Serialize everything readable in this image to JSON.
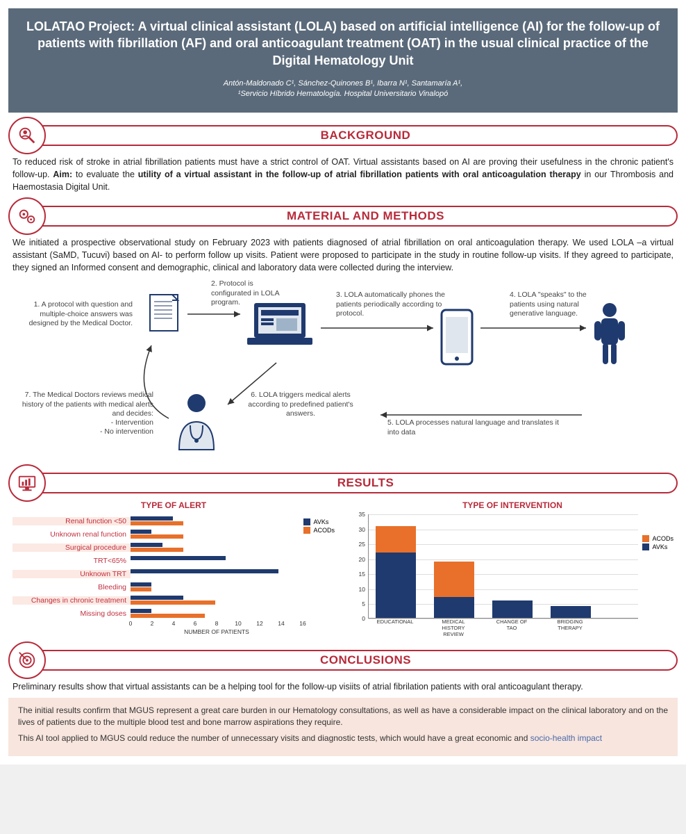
{
  "colors": {
    "header_bg": "#5a6a7a",
    "accent": "#b82a3a",
    "avk": "#1f3a6e",
    "acod": "#e8702a",
    "footer_bg": "#f7e5de",
    "label_band": "#fce9e3"
  },
  "header": {
    "title": "LOLATAO Project: A virtual clinical assistant (LOLA) based on artificial intelligence (AI) for the follow-up of patients with fibrillation (AF) and oral anticoagulant treatment (OAT) in the usual clinical practice of the Digital Hematology Unit",
    "authors_line": "Antón-Maldonado C¹, Sánchez-Quinones B¹, Ibarra N¹, Santamaría A¹,",
    "affiliation": "¹Servicio Híbrido Hematología. Hospital Universitario Vinalopó"
  },
  "sections": {
    "background": {
      "title": "BACKGROUND",
      "text_pre": "To reduced risk of stroke in atrial fibrillation patients must have a strict control of OAT. Virtual assistants based on AI are proving their usefulness in the chronic patient's follow-up. ",
      "aim_label": "Aim:",
      "aim_mid": " to evaluate the ",
      "aim_bold": "utility of a virtual assistant in the follow-up of atrial fibrillation patients with oral anticoagulation therapy",
      "aim_post": " in our Thrombosis and Haemostasia Digital Unit."
    },
    "methods": {
      "title": "MATERIAL AND METHODS",
      "text": "We initiated a prospective observational study on February 2023 with patients diagnosed of atrial fibrillation on oral anticoagulation therapy.  We used LOLA –a virtual assistant (SaMD, Tucuvi) based on AI- to perform follow up visits. Patient were proposed to participate in the study in routine follow-up visits. If they agreed to participate, they signed an Informed consent and demographic, clinical and laboratory data were collected during the interview.",
      "steps": {
        "s1": "1. A protocol with question and multiple-choice answers was designed by the Medical Doctor.",
        "s2": "2. Protocol is configurated in LOLA program.",
        "s3": "3. LOLA automatically phones the patients periodically according to protocol.",
        "s4": "4. LOLA \"speaks\" to the patients using natural generative language.",
        "s5": "5. LOLA processes natural language and translates it into data",
        "s6": "6. LOLA triggers medical alerts according to predefined patient's answers.",
        "s7a": "7. The Medical Doctors reviews medical history of the patients with medical alerts and decides:",
        "s7b": "- Intervention",
        "s7c": "- No intervention"
      }
    },
    "results": {
      "title": "RESULTS",
      "alert_chart": {
        "title": "TYPE OF ALERT",
        "type": "horizontal-grouped-bar",
        "xaxis_label": "NUMBER OF PATIENTS",
        "xmax": 16,
        "xticks": [
          0,
          2,
          4,
          6,
          8,
          10,
          12,
          14,
          16
        ],
        "legend": [
          "AVKs",
          "ACODs"
        ],
        "legend_colors": [
          "#1f3a6e",
          "#e8702a"
        ],
        "categories": [
          {
            "label": "Renal function <50",
            "avk": 4,
            "acod": 5
          },
          {
            "label": "Unknown renal function",
            "avk": 2,
            "acod": 5
          },
          {
            "label": "Surgical procedure",
            "avk": 3,
            "acod": 5
          },
          {
            "label": "TRT<65%",
            "avk": 9,
            "acod": 0
          },
          {
            "label": "Unknown TRT",
            "avk": 14,
            "acod": 0
          },
          {
            "label": "Bleeding",
            "avk": 2,
            "acod": 2
          },
          {
            "label": "Changes in chronic treatment",
            "avk": 5,
            "acod": 8
          },
          {
            "label": "Missing doses",
            "avk": 2,
            "acod": 7
          }
        ]
      },
      "intervention_chart": {
        "title": "TYPE OF INTERVENTION",
        "type": "stacked-vertical-bar",
        "ymax": 35,
        "yticks": [
          0,
          5,
          10,
          15,
          20,
          25,
          30,
          35
        ],
        "legend": [
          "ACODs",
          "AVKs"
        ],
        "legend_colors": [
          "#e8702a",
          "#1f3a6e"
        ],
        "categories": [
          {
            "label": "EDUCATIONAL",
            "avk": 22,
            "acod": 9
          },
          {
            "label": "MEDICAL HISTORY REVIEW",
            "avk": 7,
            "acod": 12
          },
          {
            "label": "CHANGE OF TAO",
            "avk": 6,
            "acod": 0
          },
          {
            "label": "BRIDGING THERAPY",
            "avk": 4,
            "acod": 0
          }
        ]
      }
    },
    "conclusions": {
      "title": "CONCLUSIONS",
      "text": "Preliminary results show that virtual assistants can be a helping tool for the follow-up visiits of atrial fibrilation patients with oral anticoagulant therapy."
    }
  },
  "footer": {
    "p1": "The initial results confirm that MGUS represent a great care burden in our Hematology consultations, as well as have a considerable impact on the clinical laboratory and on the lives of patients due to the multiple blood test and bone marrow aspirations they require.",
    "p2a": "This AI tool applied to MGUS could reduce the number of unnecessary visits and diagnostic tests, which would have a great economic and ",
    "p2b": "socio-health impact"
  }
}
